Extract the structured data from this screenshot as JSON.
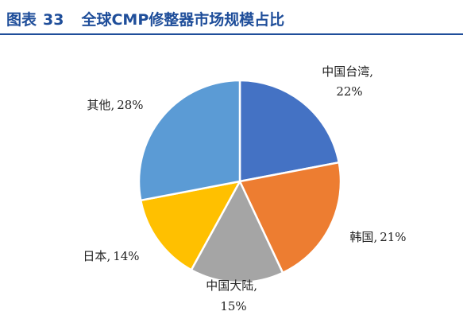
{
  "header": {
    "figure_label": "图表",
    "figure_number": "33",
    "title": "全球CMP修整器市场规模占比"
  },
  "colors": {
    "title": "#1f4e9a",
    "slice_border": "#ffffff"
  },
  "chart_data": {
    "type": "pie",
    "title": "全球CMP修整器市场规模占比",
    "start_angle_deg": 0,
    "direction": "clockwise",
    "slices": [
      {
        "label": "中国台湾",
        "value": 22,
        "text": "中国台湾, 22%",
        "color": "#4472c4"
      },
      {
        "label": "韩国",
        "value": 21,
        "text": "韩国, 21%",
        "color": "#ed7d31"
      },
      {
        "label": "中国大陆",
        "value": 15,
        "text": "中国大陆, 15%",
        "color": "#a5a5a5"
      },
      {
        "label": "日本",
        "value": 14,
        "text": "日本, 14%",
        "color": "#ffc000"
      },
      {
        "label": "其他",
        "value": 28,
        "text": "其他, 28%",
        "color": "#5b9bd5"
      }
    ]
  }
}
